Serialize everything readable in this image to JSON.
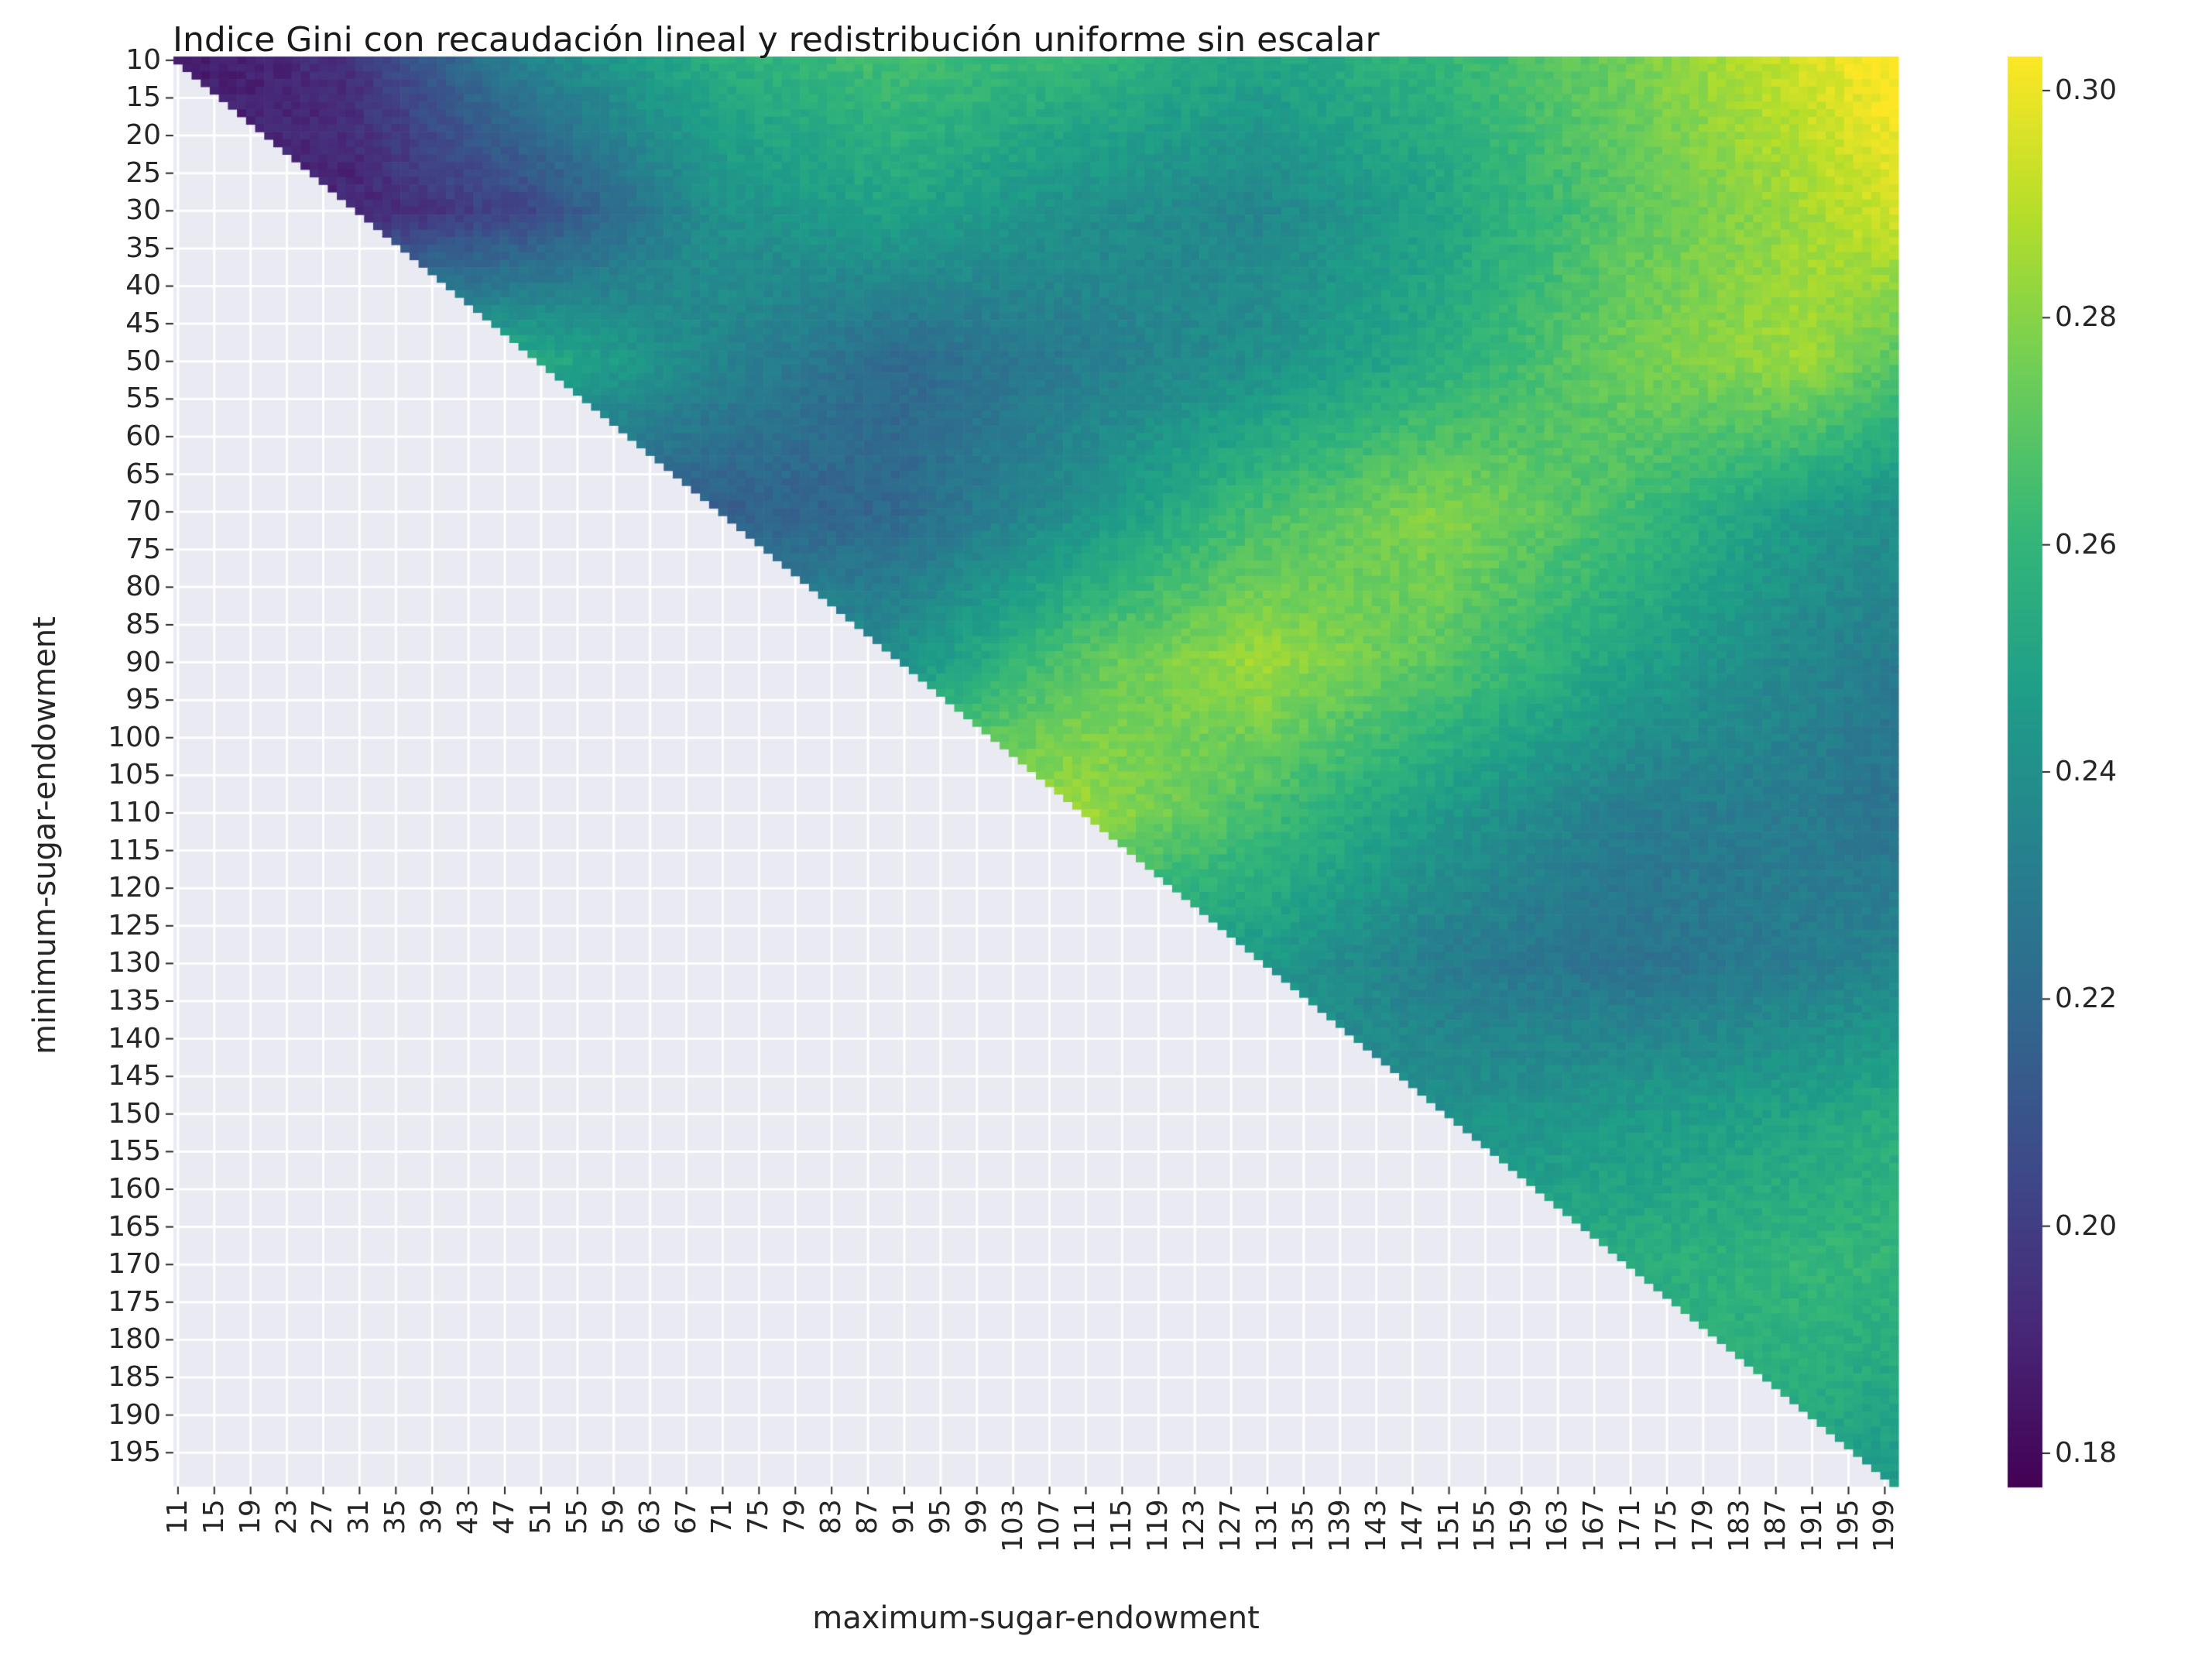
{
  "chart_data": {
    "type": "heatmap",
    "title": "Indice Gini con recaudación lineal y redistribución uniforme sin escalar",
    "xlabel": "maximum-sugar-endowment",
    "ylabel": "minimum-sugar-endowment",
    "x_tick_labels": [
      "11",
      "15",
      "19",
      "23",
      "27",
      "31",
      "35",
      "39",
      "43",
      "47",
      "51",
      "55",
      "59",
      "63",
      "67",
      "71",
      "75",
      "79",
      "83",
      "87",
      "91",
      "95",
      "99",
      "103",
      "107",
      "111",
      "115",
      "119",
      "123",
      "127",
      "131",
      "135",
      "139",
      "143",
      "147",
      "151",
      "155",
      "159",
      "163",
      "167",
      "171",
      "175",
      "179",
      "183",
      "187",
      "191",
      "195",
      "199"
    ],
    "y_tick_labels": [
      "10",
      "15",
      "20",
      "25",
      "30",
      "35",
      "40",
      "45",
      "50",
      "55",
      "60",
      "65",
      "70",
      "75",
      "80",
      "85",
      "90",
      "95",
      "100",
      "105",
      "110",
      "115",
      "120",
      "125",
      "130",
      "135",
      "140",
      "145",
      "150",
      "155",
      "160",
      "165",
      "170",
      "175",
      "180",
      "185",
      "190",
      "195"
    ],
    "x_range": [
      11,
      200
    ],
    "y_range": [
      10,
      199
    ],
    "cell_condition": "cells shown only where maximum-sugar-endowment > minimum-sugar-endowment; other cells empty",
    "colormap": "viridis",
    "colorbar": {
      "range": [
        0.177,
        0.303
      ],
      "ticks": [
        0.18,
        0.2,
        0.22,
        0.24,
        0.26,
        0.28,
        0.3
      ],
      "tick_labels": [
        "0.18",
        "0.20",
        "0.22",
        "0.24",
        "0.26",
        "0.28",
        "0.30"
      ]
    },
    "value_grid_note": "approximate Gini index read from color; rows = minimum-sugar-endowment, columns = maximum-sugar-endowment",
    "grid_rows_min": [
      10,
      30,
      50,
      70,
      90,
      110,
      130,
      150,
      170,
      190,
      199
    ],
    "grid_cols_max": [
      11,
      30,
      50,
      70,
      90,
      110,
      130,
      150,
      170,
      190,
      200
    ],
    "grid_values": [
      [
        0.185,
        0.195,
        0.235,
        0.255,
        0.265,
        0.26,
        0.25,
        0.26,
        0.275,
        0.295,
        0.305
      ],
      [
        null,
        0.19,
        0.205,
        0.24,
        0.25,
        0.24,
        0.235,
        0.25,
        0.27,
        0.285,
        0.295
      ],
      [
        null,
        null,
        0.255,
        0.235,
        0.22,
        0.23,
        0.24,
        0.255,
        0.275,
        0.285,
        0.27
      ],
      [
        null,
        null,
        null,
        0.215,
        0.22,
        0.24,
        0.265,
        0.28,
        0.265,
        0.245,
        0.24
      ],
      [
        null,
        null,
        null,
        null,
        0.24,
        0.27,
        0.285,
        0.27,
        0.25,
        0.235,
        0.23
      ],
      [
        null,
        null,
        null,
        null,
        null,
        0.285,
        0.265,
        0.245,
        0.23,
        0.23,
        0.225
      ],
      [
        null,
        null,
        null,
        null,
        null,
        null,
        0.245,
        0.23,
        0.225,
        0.23,
        0.235
      ],
      [
        null,
        null,
        null,
        null,
        null,
        null,
        null,
        0.24,
        0.245,
        0.25,
        0.255
      ],
      [
        null,
        null,
        null,
        null,
        null,
        null,
        null,
        null,
        0.255,
        0.26,
        0.26
      ],
      [
        null,
        null,
        null,
        null,
        null,
        null,
        null,
        null,
        null,
        0.255,
        0.25
      ],
      [
        null,
        null,
        null,
        null,
        null,
        null,
        null,
        null,
        null,
        null,
        0.245
      ]
    ]
  }
}
